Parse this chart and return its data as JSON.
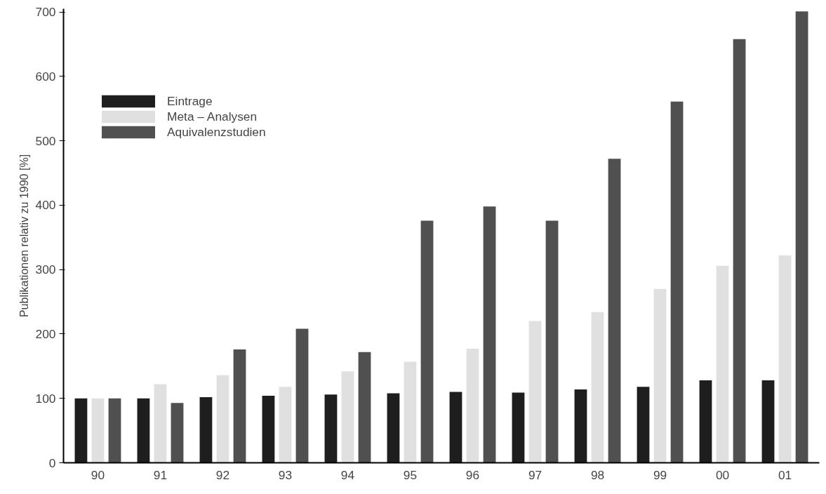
{
  "chart_data": {
    "type": "bar",
    "ylabel": "Publikationen relativ zu 1990 [%]",
    "categories": [
      "90",
      "91",
      "92",
      "93",
      "94",
      "95",
      "96",
      "97",
      "98",
      "99",
      "00",
      "01"
    ],
    "series": [
      {
        "name": "Eintrage",
        "color": "#1e1e1e",
        "values": [
          100,
          100,
          102,
          104,
          106,
          108,
          110,
          109,
          114,
          118,
          128,
          128
        ]
      },
      {
        "name": "Meta – Analysen",
        "color": "#e0e0e0",
        "values": [
          100,
          122,
          136,
          118,
          142,
          157,
          177,
          220,
          234,
          270,
          306,
          322
        ]
      },
      {
        "name": "Aquivalenzstudien",
        "color": "#505050",
        "values": [
          100,
          93,
          176,
          208,
          172,
          376,
          398,
          376,
          472,
          561,
          658,
          701
        ]
      }
    ],
    "ylim": [
      0,
      705
    ],
    "yticks": [
      0,
      100,
      200,
      300,
      400,
      500,
      600,
      700
    ],
    "grid": false,
    "legend": "top left"
  }
}
